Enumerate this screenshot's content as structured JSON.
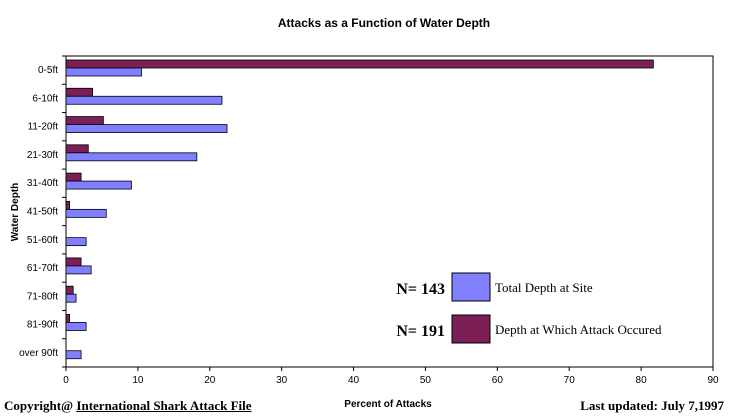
{
  "chart_data": {
    "type": "bar",
    "orientation": "horizontal",
    "title": "Attacks as a Function of Water Depth",
    "xlabel": "Percent of Attacks",
    "ylabel": "Water Depth",
    "xlim": [
      0,
      90
    ],
    "xticks": [
      0,
      10,
      20,
      30,
      40,
      50,
      60,
      70,
      80,
      90
    ],
    "grid": false,
    "legend_position": "bottom-right",
    "categories": [
      "0-5ft",
      "6-10ft",
      "11-20ft",
      "21-30ft",
      "31-40ft",
      "41-50ft",
      "51-60ft",
      "61-70ft",
      "71-80ft",
      "81-90ft",
      "over 90ft"
    ],
    "series": [
      {
        "name": "Depth at Which Attack Occured",
        "n_label": "N= 191",
        "color": "#7b1f56",
        "values": [
          81.7,
          3.7,
          5.2,
          3.1,
          2.1,
          0.5,
          0,
          2.1,
          1.0,
          0.5,
          0
        ]
      },
      {
        "name": "Total Depth at Site",
        "n_label": "N= 143",
        "color": "#8080ff",
        "values": [
          10.5,
          21.7,
          22.4,
          18.2,
          9.1,
          5.6,
          2.8,
          3.5,
          1.4,
          2.8,
          2.1
        ]
      }
    ]
  },
  "footer": {
    "copyright_prefix": "Copyright@ ",
    "copyright_link": "International Shark Attack File",
    "last_updated": "Last updated: July 7,1997"
  }
}
